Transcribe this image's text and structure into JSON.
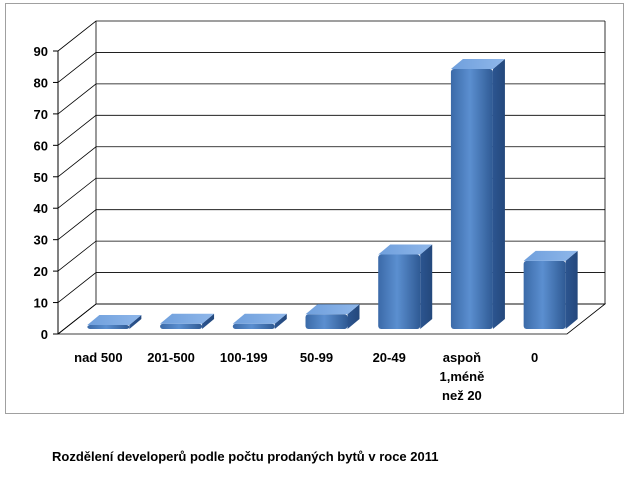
{
  "chart_data": {
    "type": "bar",
    "title": "",
    "xlabel": "",
    "ylabel": "",
    "categories": [
      "nad 500",
      "201-500",
      "100-199",
      "50-99",
      "20-49",
      "aspoň 1,méně než 20",
      "0"
    ],
    "category_lines": [
      [
        "nad 500"
      ],
      [
        "201-500"
      ],
      [
        "100-199"
      ],
      [
        "50-99"
      ],
      [
        "20-49"
      ],
      [
        "aspoň",
        "1,méně",
        "než 20"
      ],
      [
        "0"
      ]
    ],
    "values": [
      1,
      2,
      2,
      5,
      24,
      83,
      22
    ],
    "ylim": [
      0,
      90
    ],
    "yticks": [
      0,
      10,
      20,
      30,
      40,
      50,
      60,
      70,
      80,
      90
    ],
    "grid": true,
    "three_d": true,
    "legend": false,
    "bar_color": "#4a7ebb"
  },
  "caption": "Rozdělení developerů podle počtu prodaných bytů v roce 2011"
}
